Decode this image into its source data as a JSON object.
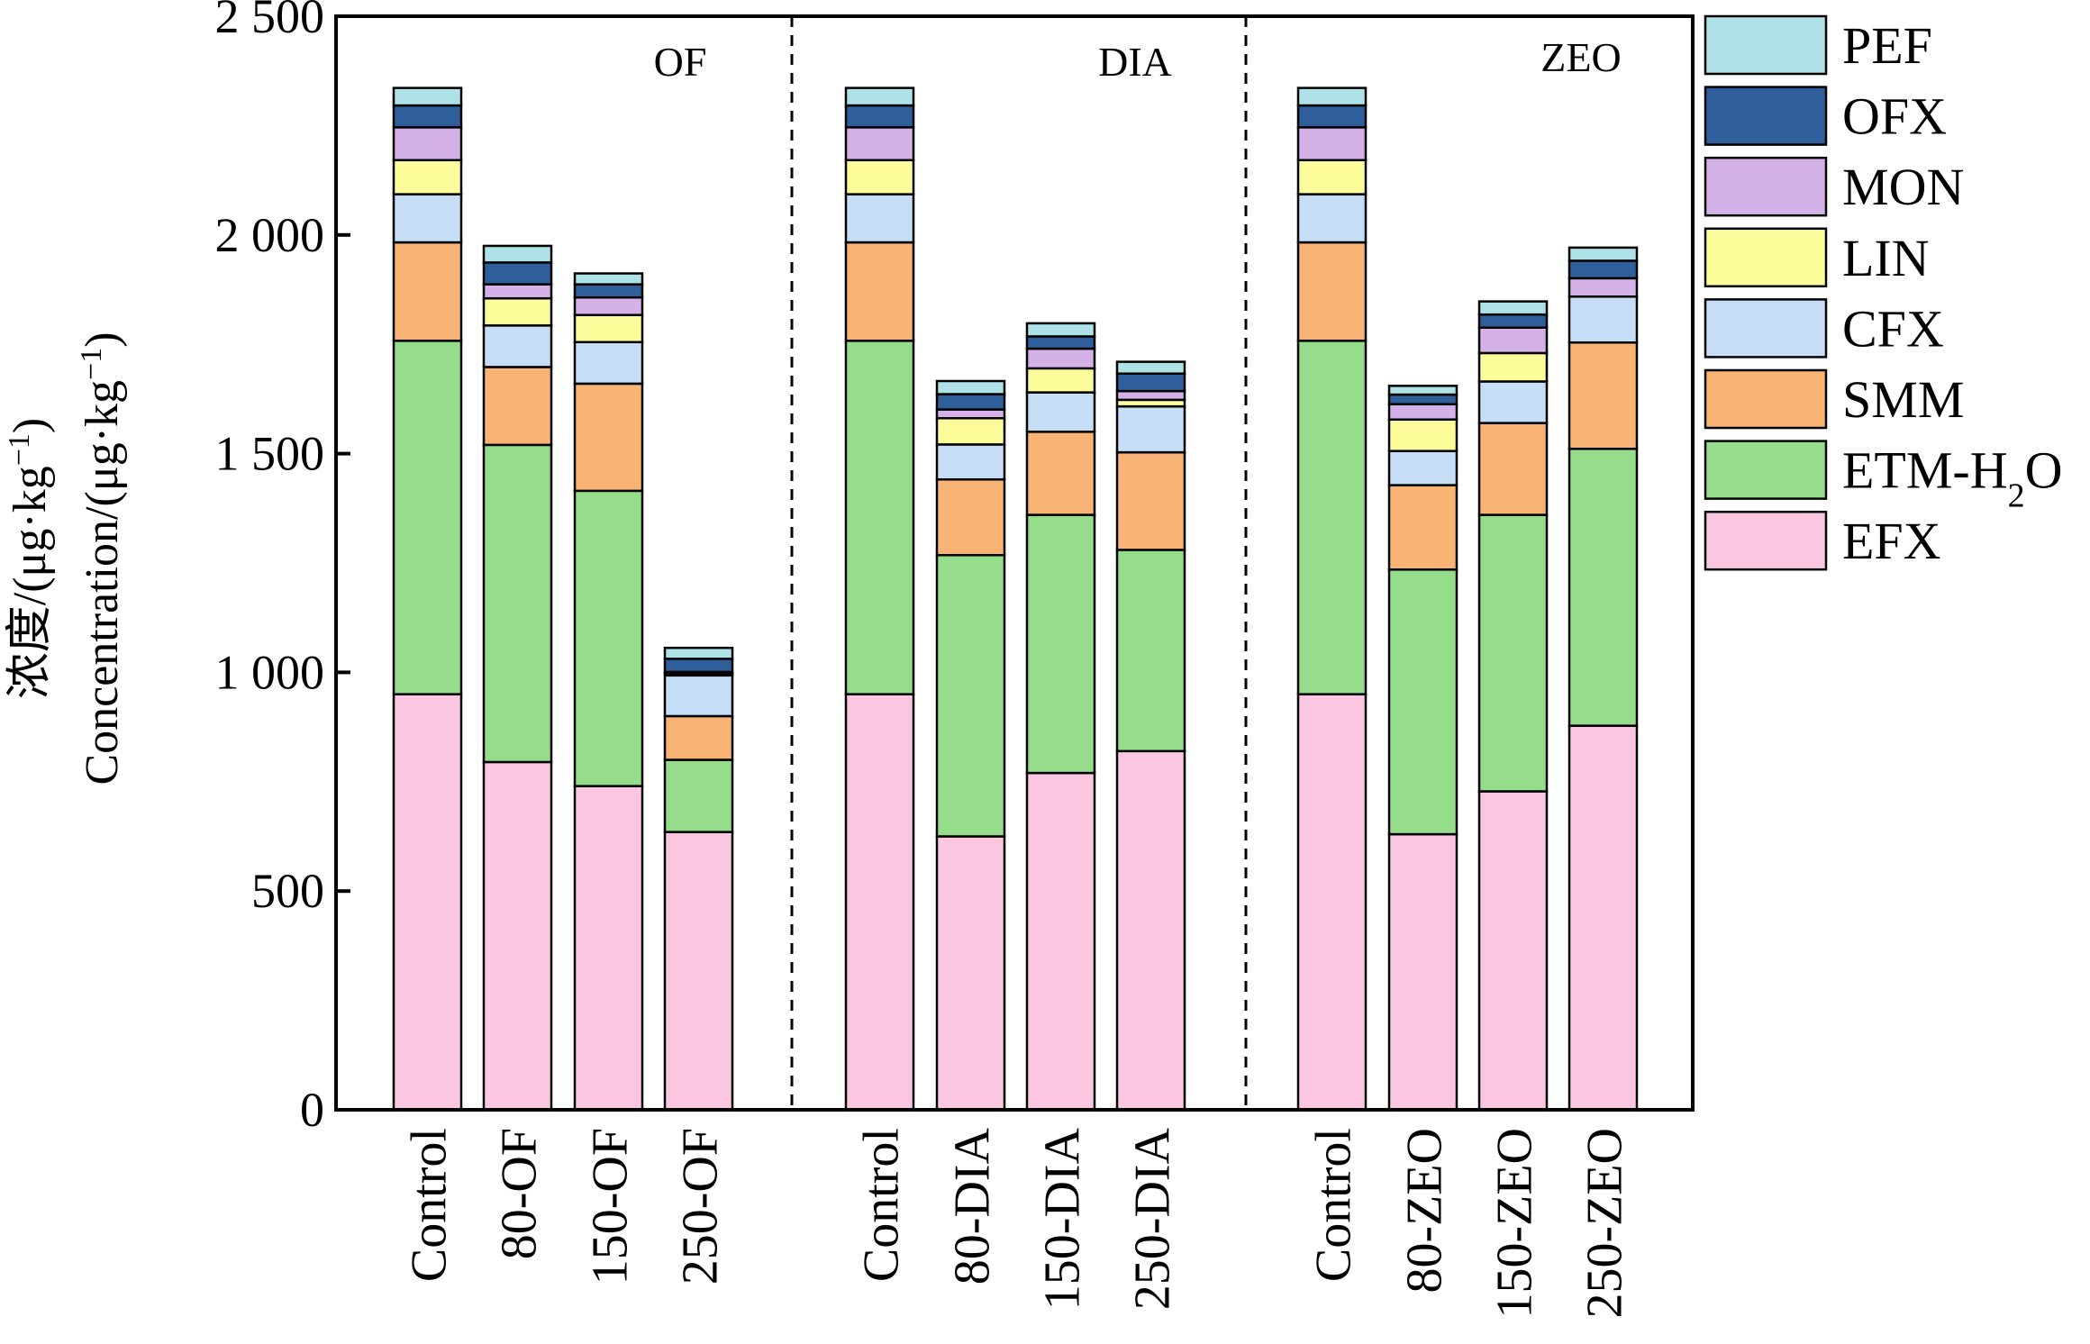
{
  "chart_data": {
    "type": "bar",
    "stacked": true,
    "categories": [
      "Control",
      "80-OF",
      "150-OF",
      "250-OF",
      "Control",
      "80-DIA",
      "150-DIA",
      "250-DIA",
      "Control",
      "80-ZEO",
      "150-ZEO",
      "250-ZEO"
    ],
    "group_labels": [
      "OF",
      "DIA",
      "ZEO"
    ],
    "ylabel_cn": "浓度/(μg·kg",
    "ylabel_en": "Concentration/(μg·kg",
    "ylabel_sup": "−1",
    "ylim": [
      0,
      2500
    ],
    "yticks": [
      0,
      500,
      1000,
      1500,
      2000,
      2500
    ],
    "ytick_labels": [
      "0",
      "500",
      "1 000",
      "1 500",
      "2 000",
      "2 500"
    ],
    "legend_position": "right",
    "series": [
      {
        "name": "EFX",
        "color": "#fbc6e0",
        "values": [
          950,
          795,
          740,
          635,
          950,
          625,
          770,
          820,
          950,
          630,
          728,
          878
        ]
      },
      {
        "name": "ETM-H",
        "name_sub": "2",
        "name_suffix": "O",
        "color": "#95dd8b",
        "values": [
          808,
          725,
          675,
          165,
          808,
          643,
          590,
          460,
          808,
          605,
          632,
          633
        ]
      },
      {
        "name": "SMM",
        "color": "#f9b375",
        "values": [
          225,
          178,
          245,
          100,
          225,
          173,
          190,
          223,
          225,
          193,
          210,
          243
        ]
      },
      {
        "name": "CFX",
        "color": "#c5def6",
        "values": [
          110,
          95,
          95,
          93,
          110,
          80,
          90,
          105,
          110,
          78,
          95,
          105
        ]
      },
      {
        "name": "LIN",
        "color": "#fdfc9a",
        "values": [
          78,
          62,
          62,
          5,
          78,
          60,
          55,
          15,
          78,
          72,
          65,
          0
        ]
      },
      {
        "name": "MON",
        "color": "#d4b2e8",
        "values": [
          75,
          32,
          40,
          3,
          75,
          20,
          45,
          20,
          75,
          35,
          58,
          42
        ]
      },
      {
        "name": "OFX",
        "color": "#2f5f9a",
        "values": [
          50,
          50,
          30,
          30,
          50,
          35,
          28,
          40,
          50,
          22,
          30,
          40
        ]
      },
      {
        "name": "PEF",
        "color": "#afe2e6",
        "values": [
          40,
          38,
          25,
          25,
          40,
          30,
          30,
          27,
          40,
          20,
          30,
          30
        ]
      }
    ]
  }
}
